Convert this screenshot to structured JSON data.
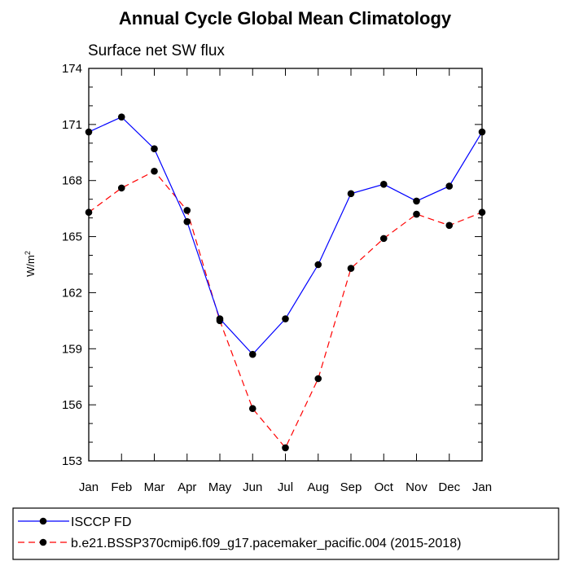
{
  "chart_data": {
    "type": "line",
    "title": "Annual Cycle Global Mean Climatology",
    "subtitle": "Surface net SW flux",
    "xlabel": "",
    "ylabel": "W/m",
    "ylabel_sup": "2",
    "categories": [
      "Jan",
      "Feb",
      "Mar",
      "Apr",
      "May",
      "Jun",
      "Jul",
      "Aug",
      "Sep",
      "Oct",
      "Nov",
      "Dec",
      "Jan"
    ],
    "ylim": [
      153,
      174
    ],
    "yticks": [
      153,
      156,
      159,
      162,
      165,
      168,
      171,
      174
    ],
    "grid": false,
    "legend_position": "bottom",
    "series": [
      {
        "name": "ISCCP FD",
        "color": "#0000ff",
        "dash": "solid",
        "values": [
          170.6,
          171.4,
          169.7,
          165.8,
          160.6,
          158.7,
          160.6,
          163.5,
          167.3,
          167.8,
          166.9,
          167.7,
          170.6
        ]
      },
      {
        "name": "b.e21.BSSP370cmip6.f09_g17.pacemaker_pacific.004 (2015-2018)",
        "color": "#ff0000",
        "dash": "dashed",
        "values": [
          166.3,
          167.6,
          168.5,
          166.4,
          160.5,
          155.8,
          153.7,
          157.4,
          163.3,
          164.9,
          166.2,
          165.6,
          166.3
        ]
      }
    ]
  }
}
